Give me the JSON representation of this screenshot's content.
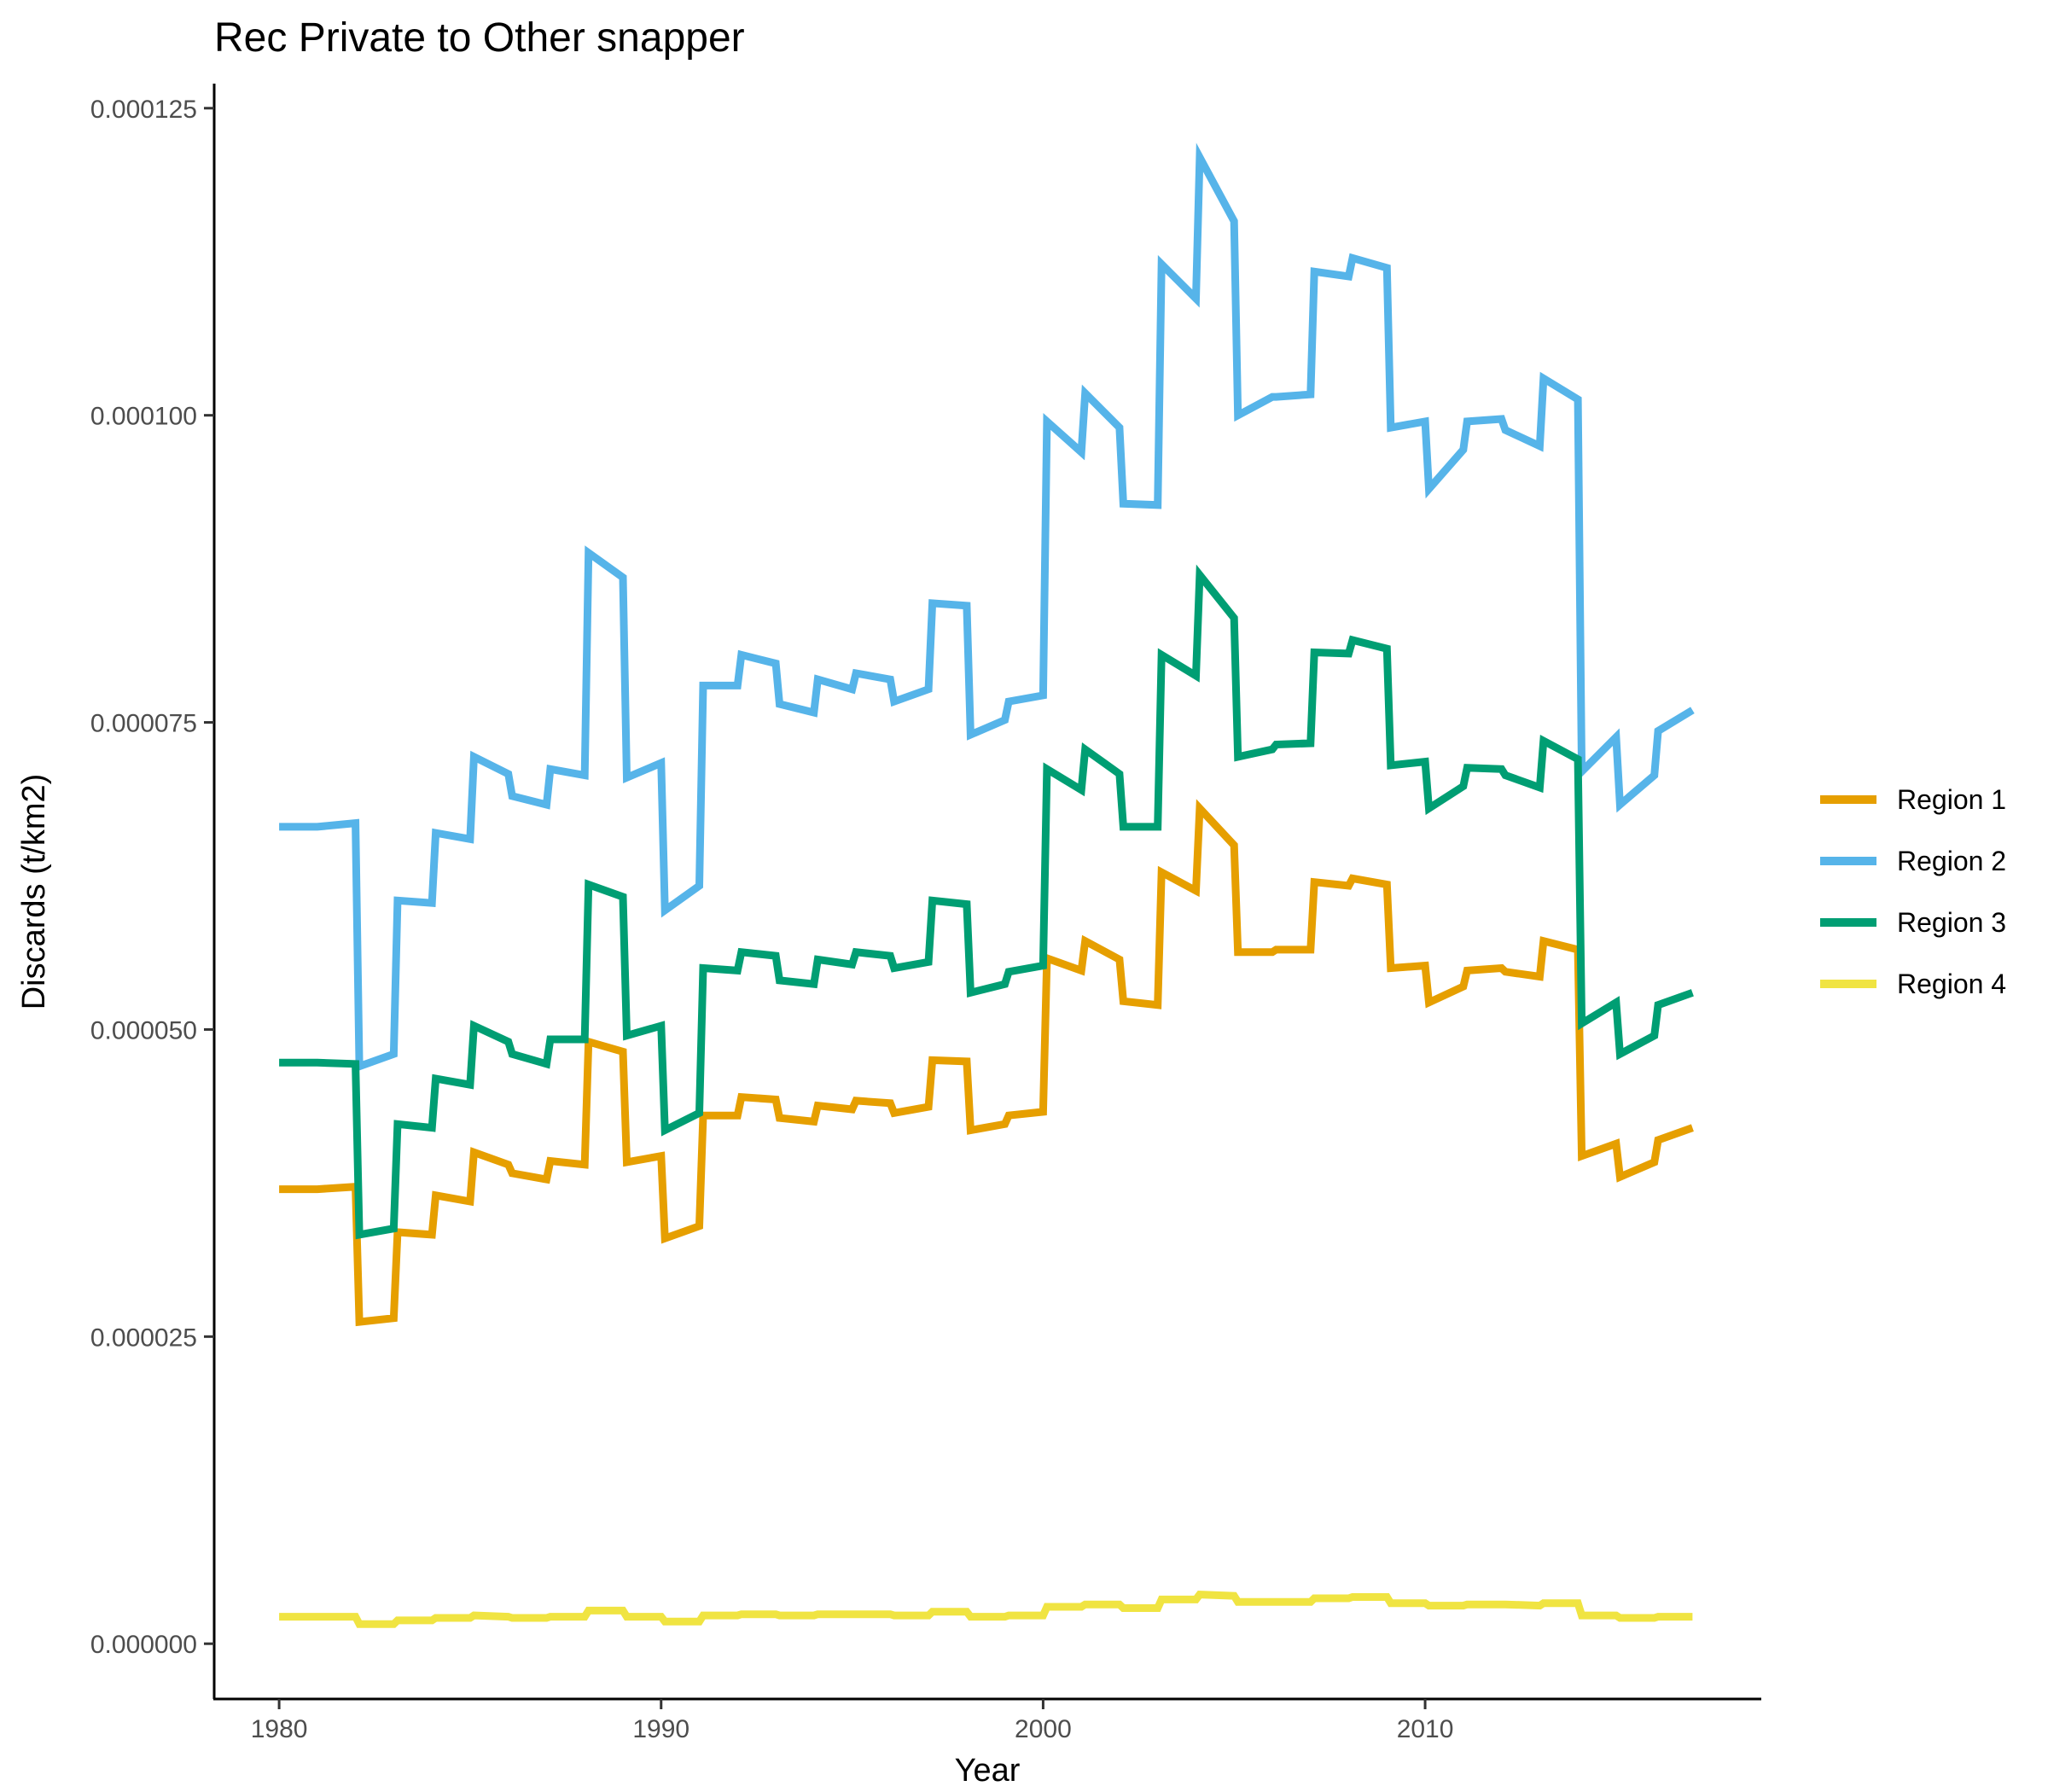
{
  "chart_data": {
    "type": "line",
    "title": "Rec Private to Other snapper",
    "xlabel": "Year",
    "ylabel": "Discards (t/km2)",
    "xlim": [
      1978.3,
      2018.8
    ],
    "ylim": [
      -4.5e-06,
      0.000127
    ],
    "x_ticks": [
      1980,
      1990,
      2000,
      2010
    ],
    "x_tick_labels": [
      "1980",
      "1990",
      "2000",
      "2010"
    ],
    "y_ticks": [
      0,
      2.5e-05,
      5e-05,
      7.5e-05,
      0.0001,
      0.000125
    ],
    "y_tick_labels": [
      "0.000000",
      "0.000025",
      "0.000050",
      "0.000075",
      "0.000100",
      "0.000125"
    ],
    "grid": false,
    "legend_position": "right",
    "series": [
      {
        "name": "Region 1",
        "color": "#E69F00",
        "points": [
          [
            1980,
            3.7e-05
          ],
          [
            1981,
            3.7e-05
          ],
          [
            1982,
            3.72e-05
          ],
          [
            1982.1,
            2.62e-05
          ],
          [
            1983,
            2.65e-05
          ],
          [
            1983.1,
            3.35e-05
          ],
          [
            1984,
            3.33e-05
          ],
          [
            1984.1,
            3.65e-05
          ],
          [
            1985,
            3.6e-05
          ],
          [
            1985.1,
            4e-05
          ],
          [
            1986,
            3.9e-05
          ],
          [
            1986.1,
            3.83e-05
          ],
          [
            1987,
            3.78e-05
          ],
          [
            1987.1,
            3.93e-05
          ],
          [
            1988,
            3.9e-05
          ],
          [
            1988.1,
            4.9e-05
          ],
          [
            1989,
            4.82e-05
          ],
          [
            1989.1,
            3.92e-05
          ],
          [
            1990,
            3.97e-05
          ],
          [
            1990.1,
            3.3e-05
          ],
          [
            1991,
            3.4e-05
          ],
          [
            1991.1,
            4.3e-05
          ],
          [
            1992,
            4.3e-05
          ],
          [
            1992.1,
            4.45e-05
          ],
          [
            1993,
            4.43e-05
          ],
          [
            1993.1,
            4.28e-05
          ],
          [
            1994,
            4.25e-05
          ],
          [
            1994.1,
            4.38e-05
          ],
          [
            1995,
            4.35e-05
          ],
          [
            1995.1,
            4.42e-05
          ],
          [
            1996,
            4.4e-05
          ],
          [
            1996.1,
            4.32e-05
          ],
          [
            1997,
            4.37e-05
          ],
          [
            1997.1,
            4.75e-05
          ],
          [
            1998,
            4.74e-05
          ],
          [
            1998.1,
            4.18e-05
          ],
          [
            1999,
            4.23e-05
          ],
          [
            1999.1,
            4.3e-05
          ],
          [
            2000,
            4.33e-05
          ],
          [
            2000.1,
            5.58e-05
          ],
          [
            2001,
            5.48e-05
          ],
          [
            2001.1,
            5.72e-05
          ],
          [
            2002,
            5.57e-05
          ],
          [
            2002.1,
            5.23e-05
          ],
          [
            2003,
            5.2e-05
          ],
          [
            2003.1,
            6.28e-05
          ],
          [
            2004,
            6.13e-05
          ],
          [
            2004.1,
            6.8e-05
          ],
          [
            2005,
            6.5e-05
          ],
          [
            2005.1,
            5.63e-05
          ],
          [
            2006,
            5.63e-05
          ],
          [
            2006.1,
            5.65e-05
          ],
          [
            2007,
            5.65e-05
          ],
          [
            2007.1,
            6.2e-05
          ],
          [
            2008,
            6.17e-05
          ],
          [
            2008.1,
            6.23e-05
          ],
          [
            2009,
            6.18e-05
          ],
          [
            2009.1,
            5.5e-05
          ],
          [
            2010,
            5.52e-05
          ],
          [
            2010.1,
            5.22e-05
          ],
          [
            2011,
            5.35e-05
          ],
          [
            2011.1,
            5.48e-05
          ],
          [
            2012,
            5.5e-05
          ],
          [
            2012.1,
            5.47e-05
          ],
          [
            2013,
            5.43e-05
          ],
          [
            2013.1,
            5.72e-05
          ],
          [
            2014,
            5.65e-05
          ],
          [
            2014.1,
            3.97e-05
          ],
          [
            2015,
            4.07e-05
          ],
          [
            2015.1,
            3.8e-05
          ],
          [
            2016,
            3.92e-05
          ],
          [
            2016.1,
            4.1e-05
          ],
          [
            2017,
            4.2e-05
          ]
        ]
      },
      {
        "name": "Region 2",
        "color": "#56B4E9",
        "points": [
          [
            1980,
            6.65e-05
          ],
          [
            1981,
            6.65e-05
          ],
          [
            1982,
            6.68e-05
          ],
          [
            1982.1,
            4.7e-05
          ],
          [
            1983,
            4.8e-05
          ],
          [
            1983.1,
            6.05e-05
          ],
          [
            1984,
            6.03e-05
          ],
          [
            1984.1,
            6.6e-05
          ],
          [
            1985,
            6.55e-05
          ],
          [
            1985.1,
            7.22e-05
          ],
          [
            1986,
            7.08e-05
          ],
          [
            1986.1,
            6.9e-05
          ],
          [
            1987,
            6.83e-05
          ],
          [
            1987.1,
            7.12e-05
          ],
          [
            1988,
            7.07e-05
          ],
          [
            1988.1,
            8.88e-05
          ],
          [
            1989,
            8.68e-05
          ],
          [
            1989.1,
            7.05e-05
          ],
          [
            1990,
            7.17e-05
          ],
          [
            1990.1,
            5.97e-05
          ],
          [
            1991,
            6.17e-05
          ],
          [
            1991.1,
            7.8e-05
          ],
          [
            1992,
            7.8e-05
          ],
          [
            1992.1,
            8.05e-05
          ],
          [
            1993,
            7.98e-05
          ],
          [
            1993.1,
            7.65e-05
          ],
          [
            1994,
            7.58e-05
          ],
          [
            1994.1,
            7.85e-05
          ],
          [
            1995,
            7.77e-05
          ],
          [
            1995.1,
            7.9e-05
          ],
          [
            1996,
            7.85e-05
          ],
          [
            1996.1,
            7.67e-05
          ],
          [
            1997,
            7.77e-05
          ],
          [
            1997.1,
            8.47e-05
          ],
          [
            1998,
            8.45e-05
          ],
          [
            1998.1,
            7.4e-05
          ],
          [
            1999,
            7.52e-05
          ],
          [
            1999.1,
            7.67e-05
          ],
          [
            2000,
            7.72e-05
          ],
          [
            2000.1,
            9.95e-05
          ],
          [
            2001,
            9.7e-05
          ],
          [
            2001.1,
            0.0001018
          ],
          [
            2002,
            9.9e-05
          ],
          [
            2002.1,
            9.28e-05
          ],
          [
            2003,
            9.27e-05
          ],
          [
            2003.1,
            0.0001123
          ],
          [
            2004,
            0.0001095
          ],
          [
            2004.1,
            0.000121
          ],
          [
            2005,
            0.0001158
          ],
          [
            2005.1,
            0.0001
          ],
          [
            2006,
            0.0001015
          ],
          [
            2006.1,
            0.0001015
          ],
          [
            2007,
            0.0001017
          ],
          [
            2007.1,
            0.0001117
          ],
          [
            2008,
            0.0001113
          ],
          [
            2008.1,
            0.0001128
          ],
          [
            2009,
            0.000112
          ],
          [
            2009.1,
            9.9e-05
          ],
          [
            2010,
            9.95e-05
          ],
          [
            2010.1,
            9.4e-05
          ],
          [
            2011,
            9.72e-05
          ],
          [
            2011.1,
            9.95e-05
          ],
          [
            2012,
            9.97e-05
          ],
          [
            2012.1,
            9.88e-05
          ],
          [
            2013,
            9.75e-05
          ],
          [
            2013.1,
            0.000103
          ],
          [
            2014,
            0.0001013
          ],
          [
            2014.1,
            7.1e-05
          ],
          [
            2015,
            7.38e-05
          ],
          [
            2015.1,
            6.83e-05
          ],
          [
            2016,
            7.07e-05
          ],
          [
            2016.1,
            7.43e-05
          ],
          [
            2017,
            7.6e-05
          ]
        ]
      },
      {
        "name": "Region 3",
        "color": "#009E73",
        "points": [
          [
            1980,
            4.73e-05
          ],
          [
            1981,
            4.73e-05
          ],
          [
            1982,
            4.72e-05
          ],
          [
            1982.1,
            3.33e-05
          ],
          [
            1983,
            3.38e-05
          ],
          [
            1983.1,
            4.23e-05
          ],
          [
            1984,
            4.2e-05
          ],
          [
            1984.1,
            4.6e-05
          ],
          [
            1985,
            4.55e-05
          ],
          [
            1985.1,
            5.03e-05
          ],
          [
            1986,
            4.9e-05
          ],
          [
            1986.1,
            4.8e-05
          ],
          [
            1987,
            4.72e-05
          ],
          [
            1987.1,
            4.92e-05
          ],
          [
            1988,
            4.92e-05
          ],
          [
            1988.1,
            6.18e-05
          ],
          [
            1989,
            6.08e-05
          ],
          [
            1989.1,
            4.95e-05
          ],
          [
            1990,
            5.03e-05
          ],
          [
            1990.1,
            4.18e-05
          ],
          [
            1991,
            4.32e-05
          ],
          [
            1991.1,
            5.5e-05
          ],
          [
            1992,
            5.48e-05
          ],
          [
            1992.1,
            5.63e-05
          ],
          [
            1993,
            5.6e-05
          ],
          [
            1993.1,
            5.4e-05
          ],
          [
            1994,
            5.37e-05
          ],
          [
            1994.1,
            5.57e-05
          ],
          [
            1995,
            5.53e-05
          ],
          [
            1995.1,
            5.63e-05
          ],
          [
            1996,
            5.6e-05
          ],
          [
            1996.1,
            5.5e-05
          ],
          [
            1997,
            5.55e-05
          ],
          [
            1997.1,
            6.05e-05
          ],
          [
            1998,
            6.02e-05
          ],
          [
            1998.1,
            5.3e-05
          ],
          [
            1999,
            5.37e-05
          ],
          [
            1999.1,
            5.47e-05
          ],
          [
            2000,
            5.52e-05
          ],
          [
            2000.1,
            7.12e-05
          ],
          [
            2001,
            6.95e-05
          ],
          [
            2001.1,
            7.28e-05
          ],
          [
            2002,
            7.08e-05
          ],
          [
            2002.1,
            6.65e-05
          ],
          [
            2003,
            6.65e-05
          ],
          [
            2003.1,
            8.05e-05
          ],
          [
            2004,
            7.88e-05
          ],
          [
            2004.1,
            8.7e-05
          ],
          [
            2005,
            8.35e-05
          ],
          [
            2005.1,
            7.22e-05
          ],
          [
            2006,
            7.28e-05
          ],
          [
            2006.1,
            7.32e-05
          ],
          [
            2007,
            7.33e-05
          ],
          [
            2007.1,
            8.07e-05
          ],
          [
            2008,
            8.06e-05
          ],
          [
            2008.1,
            8.17e-05
          ],
          [
            2009,
            8.1e-05
          ],
          [
            2009.1,
            7.15e-05
          ],
          [
            2010,
            7.18e-05
          ],
          [
            2010.1,
            6.8e-05
          ],
          [
            2011,
            6.98e-05
          ],
          [
            2011.1,
            7.13e-05
          ],
          [
            2012,
            7.12e-05
          ],
          [
            2012.1,
            7.07e-05
          ],
          [
            2013,
            6.97e-05
          ],
          [
            2013.1,
            7.35e-05
          ],
          [
            2014,
            7.2e-05
          ],
          [
            2014.1,
            5.05e-05
          ],
          [
            2015,
            5.22e-05
          ],
          [
            2015.1,
            4.8e-05
          ],
          [
            2016,
            4.95e-05
          ],
          [
            2016.1,
            5.2e-05
          ],
          [
            2017,
            5.3e-05
          ]
        ]
      },
      {
        "name": "Region 4",
        "color": "#F0E442",
        "points": [
          [
            1980,
            2.2e-06
          ],
          [
            1981,
            2.2e-06
          ],
          [
            1982,
            2.2e-06
          ],
          [
            1982.1,
            1.6e-06
          ],
          [
            1983,
            1.6e-06
          ],
          [
            1983.1,
            1.9e-06
          ],
          [
            1984,
            1.9e-06
          ],
          [
            1984.1,
            2.1e-06
          ],
          [
            1985,
            2.1e-06
          ],
          [
            1985.1,
            2.3e-06
          ],
          [
            1986,
            2.2e-06
          ],
          [
            1986.1,
            2.1e-06
          ],
          [
            1987,
            2.1e-06
          ],
          [
            1987.1,
            2.2e-06
          ],
          [
            1988,
            2.2e-06
          ],
          [
            1988.1,
            2.7e-06
          ],
          [
            1989,
            2.7e-06
          ],
          [
            1989.1,
            2.2e-06
          ],
          [
            1990,
            2.2e-06
          ],
          [
            1990.1,
            1.8e-06
          ],
          [
            1991,
            1.8e-06
          ],
          [
            1991.1,
            2.3e-06
          ],
          [
            1992,
            2.3e-06
          ],
          [
            1992.1,
            2.4e-06
          ],
          [
            1993,
            2.4e-06
          ],
          [
            1993.1,
            2.3e-06
          ],
          [
            1994,
            2.3e-06
          ],
          [
            1994.1,
            2.4e-06
          ],
          [
            1995,
            2.4e-06
          ],
          [
            1995.1,
            2.4e-06
          ],
          [
            1996,
            2.4e-06
          ],
          [
            1996.1,
            2.3e-06
          ],
          [
            1997,
            2.3e-06
          ],
          [
            1997.1,
            2.6e-06
          ],
          [
            1998,
            2.6e-06
          ],
          [
            1998.1,
            2.2e-06
          ],
          [
            1999,
            2.2e-06
          ],
          [
            1999.1,
            2.3e-06
          ],
          [
            2000,
            2.3e-06
          ],
          [
            2000.1,
            3e-06
          ],
          [
            2001,
            3e-06
          ],
          [
            2001.1,
            3.2e-06
          ],
          [
            2002,
            3.2e-06
          ],
          [
            2002.1,
            2.9e-06
          ],
          [
            2003,
            2.9e-06
          ],
          [
            2003.1,
            3.6e-06
          ],
          [
            2004,
            3.6e-06
          ],
          [
            2004.1,
            4e-06
          ],
          [
            2005,
            3.9e-06
          ],
          [
            2005.1,
            3.4e-06
          ],
          [
            2006,
            3.4e-06
          ],
          [
            2006.1,
            3.4e-06
          ],
          [
            2007,
            3.4e-06
          ],
          [
            2007.1,
            3.7e-06
          ],
          [
            2008,
            3.7e-06
          ],
          [
            2008.1,
            3.8e-06
          ],
          [
            2009,
            3.8e-06
          ],
          [
            2009.1,
            3.3e-06
          ],
          [
            2010,
            3.3e-06
          ],
          [
            2010.1,
            3.1e-06
          ],
          [
            2011,
            3.1e-06
          ],
          [
            2011.1,
            3.2e-06
          ],
          [
            2012,
            3.2e-06
          ],
          [
            2012.1,
            3.2e-06
          ],
          [
            2013,
            3.1e-06
          ],
          [
            2013.1,
            3.3e-06
          ],
          [
            2014,
            3.3e-06
          ],
          [
            2014.1,
            2.3e-06
          ],
          [
            2015,
            2.3e-06
          ],
          [
            2015.1,
            2.1e-06
          ],
          [
            2016,
            2.1e-06
          ],
          [
            2016.1,
            2.2e-06
          ],
          [
            2017,
            2.2e-06
          ]
        ]
      }
    ]
  }
}
